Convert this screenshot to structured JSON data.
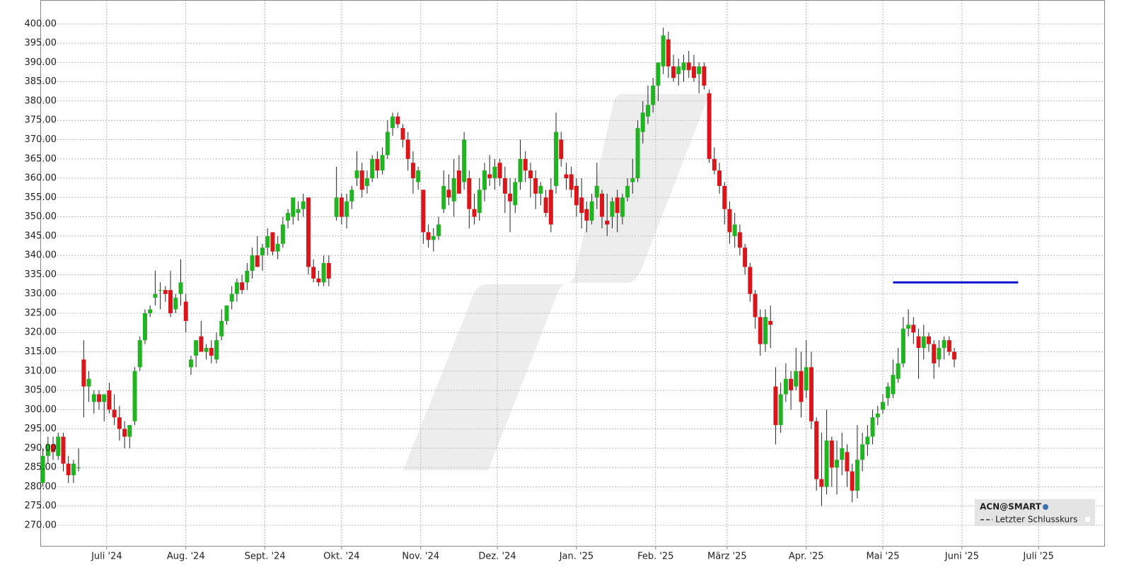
{
  "chart_data": {
    "type": "candlestick",
    "up_color": "#22b322",
    "down_color": "#d9161c",
    "grid": true,
    "xlim": [
      -26,
      391
    ],
    "ylim": [
      264.5,
      406.2
    ],
    "yticks": [
      {
        "value": 270,
        "label": "270.00"
      },
      {
        "value": 275,
        "label": "275.00"
      },
      {
        "value": 280,
        "label": "280.00"
      },
      {
        "value": 285,
        "label": "285.00"
      },
      {
        "value": 290,
        "label": "290.00"
      },
      {
        "value": 295,
        "label": "295.00"
      },
      {
        "value": 300,
        "label": "300.00"
      },
      {
        "value": 305,
        "label": "305.00"
      },
      {
        "value": 310,
        "label": "310.00"
      },
      {
        "value": 315,
        "label": "315.00"
      },
      {
        "value": 320,
        "label": "320.00"
      },
      {
        "value": 325,
        "label": "325.00"
      },
      {
        "value": 330,
        "label": "330.00"
      },
      {
        "value": 335,
        "label": "335.00"
      },
      {
        "value": 340,
        "label": "340.00"
      },
      {
        "value": 345,
        "label": "345.00"
      },
      {
        "value": 350,
        "label": "350.00"
      },
      {
        "value": 355,
        "label": "355.00"
      },
      {
        "value": 360,
        "label": "360.00"
      },
      {
        "value": 365,
        "label": "365.00"
      },
      {
        "value": 370,
        "label": "370.00"
      },
      {
        "value": 375,
        "label": "375.00"
      },
      {
        "value": 380,
        "label": "380.00"
      },
      {
        "value": 385,
        "label": "385.00"
      },
      {
        "value": 390,
        "label": "390.00"
      },
      {
        "value": 395,
        "label": "395.00"
      },
      {
        "value": 400,
        "label": "400.00"
      }
    ],
    "xticks": [
      {
        "value": 0,
        "label": "Juli '24"
      },
      {
        "value": 31,
        "label": "Aug. '24"
      },
      {
        "value": 62,
        "label": "Sept. '24"
      },
      {
        "value": 92,
        "label": "Okt. '24"
      },
      {
        "value": 123,
        "label": "Nov. '24"
      },
      {
        "value": 153,
        "label": "Dez. '24"
      },
      {
        "value": 184,
        "label": "Jan. '25"
      },
      {
        "value": 215,
        "label": "Feb. '25"
      },
      {
        "value": 243,
        "label": "März '25"
      },
      {
        "value": 274,
        "label": "Apr. '25"
      },
      {
        "value": 304,
        "label": "Mai '25"
      },
      {
        "value": 335,
        "label": "Juni '25"
      },
      {
        "value": 365,
        "label": "Juli '25"
      }
    ],
    "candles": [
      [
        -25,
        281,
        290,
        280,
        288
      ],
      [
        -23,
        288,
        293,
        286,
        291
      ],
      [
        -21,
        291,
        293,
        287,
        289
      ],
      [
        -19,
        288,
        294,
        287,
        293
      ],
      [
        -17,
        293,
        294,
        284,
        286
      ],
      [
        -15,
        286,
        288,
        281,
        283
      ],
      [
        -13,
        283,
        287,
        281,
        286
      ],
      [
        -11,
        285,
        290,
        284,
        285
      ],
      [
        -9,
        313,
        318,
        298,
        306
      ],
      [
        -7,
        306,
        310,
        302,
        308
      ],
      [
        -5,
        302,
        305,
        299,
        304
      ],
      [
        -3,
        304,
        305,
        300,
        302
      ],
      [
        -1,
        302,
        304,
        297,
        304
      ],
      [
        1,
        305,
        307,
        299,
        300
      ],
      [
        3,
        300,
        304,
        296,
        298
      ],
      [
        5,
        298,
        301,
        292,
        295
      ],
      [
        7,
        295,
        297,
        290,
        293
      ],
      [
        9,
        293,
        296,
        290,
        296
      ],
      [
        11,
        297,
        311,
        296,
        310
      ],
      [
        13,
        311,
        319,
        310,
        318
      ],
      [
        15,
        318,
        326,
        317,
        325
      ],
      [
        17,
        325,
        327,
        324,
        326
      ],
      [
        19,
        329,
        336,
        327,
        330
      ],
      [
        21,
        331,
        333,
        326,
        331
      ],
      [
        23,
        331,
        332,
        328,
        330
      ],
      [
        25,
        331,
        336,
        324,
        325
      ],
      [
        27,
        326,
        330,
        325,
        329
      ],
      [
        29,
        330,
        339,
        327,
        333
      ],
      [
        31,
        328,
        330,
        320,
        323
      ],
      [
        33,
        311,
        314,
        309,
        313
      ],
      [
        35,
        314,
        318,
        311,
        318
      ],
      [
        37,
        319,
        323,
        315,
        315
      ],
      [
        39,
        315,
        317,
        313,
        316
      ],
      [
        41,
        316,
        318,
        312,
        314
      ],
      [
        43,
        313,
        320,
        312,
        318
      ],
      [
        45,
        319,
        326,
        318,
        323
      ],
      [
        47,
        323,
        327,
        322,
        327
      ],
      [
        49,
        328,
        332,
        326,
        330
      ],
      [
        51,
        330,
        334,
        328,
        333
      ],
      [
        53,
        333,
        335,
        330,
        331
      ],
      [
        55,
        333,
        338,
        331,
        336
      ],
      [
        57,
        336,
        342,
        334,
        340
      ],
      [
        59,
        340,
        345,
        338,
        337
      ],
      [
        61,
        340,
        343,
        336,
        342
      ],
      [
        63,
        342,
        347,
        340,
        345
      ],
      [
        65,
        346,
        346,
        340,
        341
      ],
      [
        67,
        341,
        345,
        339,
        343
      ],
      [
        69,
        343,
        350,
        342,
        348
      ],
      [
        71,
        349,
        352,
        347,
        351
      ],
      [
        73,
        350,
        355,
        348,
        355
      ],
      [
        75,
        351,
        354,
        349,
        352
      ],
      [
        77,
        352,
        356,
        350,
        354
      ],
      [
        79,
        355,
        355,
        335,
        337
      ],
      [
        81,
        337,
        339,
        333,
        334
      ],
      [
        83,
        334,
        336,
        332,
        333
      ],
      [
        85,
        333,
        340,
        332,
        338
      ],
      [
        87,
        338,
        340,
        332,
        334
      ],
      [
        90,
        350,
        363,
        349,
        355
      ],
      [
        92,
        355,
        356,
        348,
        350
      ],
      [
        94,
        350,
        356,
        347,
        354
      ],
      [
        96,
        354,
        358,
        352,
        357
      ],
      [
        98,
        360,
        367,
        358,
        362
      ],
      [
        100,
        362,
        364,
        355,
        357
      ],
      [
        102,
        358,
        362,
        356,
        360
      ],
      [
        104,
        360,
        366,
        359,
        365
      ],
      [
        106,
        365,
        367,
        360,
        362
      ],
      [
        108,
        362,
        368,
        361,
        366
      ],
      [
        110,
        366,
        375,
        365,
        372
      ],
      [
        112,
        373,
        377,
        371,
        376
      ],
      [
        114,
        376,
        377,
        373,
        374
      ],
      [
        116,
        373,
        374,
        368,
        370
      ],
      [
        118,
        370,
        372,
        362,
        365
      ],
      [
        120,
        364,
        367,
        356,
        360
      ],
      [
        122,
        359,
        363,
        357,
        362
      ],
      [
        124,
        357,
        357,
        343,
        346
      ],
      [
        126,
        346,
        348,
        342,
        344
      ],
      [
        128,
        344,
        347,
        341,
        345
      ],
      [
        130,
        345,
        350,
        344,
        348
      ],
      [
        132,
        352,
        362,
        351,
        358
      ],
      [
        134,
        357,
        361,
        353,
        355
      ],
      [
        136,
        354,
        365,
        350,
        360
      ],
      [
        138,
        362,
        366,
        357,
        356
      ],
      [
        140,
        359,
        372,
        357,
        370
      ],
      [
        142,
        360,
        362,
        347,
        352
      ],
      [
        144,
        352,
        356,
        348,
        350
      ],
      [
        146,
        351,
        360,
        349,
        357
      ],
      [
        148,
        357,
        364,
        354,
        362
      ],
      [
        150,
        361,
        366,
        358,
        360
      ],
      [
        152,
        360,
        365,
        357,
        363
      ],
      [
        154,
        364,
        365,
        358,
        360
      ],
      [
        156,
        360,
        363,
        351,
        356
      ],
      [
        158,
        356,
        360,
        346,
        354
      ],
      [
        160,
        353,
        360,
        351,
        359
      ],
      [
        162,
        359,
        370,
        357,
        365
      ],
      [
        164,
        365,
        367,
        359,
        362
      ],
      [
        166,
        362,
        364,
        355,
        360
      ],
      [
        168,
        360,
        362,
        352,
        356
      ],
      [
        170,
        356,
        359,
        353,
        358
      ],
      [
        172,
        355,
        357,
        350,
        351
      ],
      [
        174,
        357,
        360,
        346,
        348
      ],
      [
        176,
        358,
        377,
        356,
        372
      ],
      [
        178,
        370,
        372,
        363,
        365
      ],
      [
        180,
        361,
        364,
        357,
        360
      ],
      [
        182,
        361,
        363,
        355,
        357
      ],
      [
        184,
        358,
        360,
        350,
        353
      ],
      [
        186,
        355,
        360,
        347,
        351
      ],
      [
        188,
        352,
        354,
        346,
        349
      ],
      [
        190,
        349,
        356,
        348,
        354
      ],
      [
        192,
        355,
        364,
        352,
        358
      ],
      [
        194,
        356,
        357,
        347,
        350
      ],
      [
        196,
        349,
        356,
        345,
        348
      ],
      [
        198,
        350,
        355,
        347,
        354
      ],
      [
        200,
        355,
        357,
        346,
        351
      ],
      [
        202,
        350,
        356,
        348,
        355
      ],
      [
        204,
        355,
        360,
        354,
        358
      ],
      [
        206,
        359,
        365,
        356,
        360
      ],
      [
        208,
        360,
        375,
        359,
        373
      ],
      [
        210,
        372,
        380,
        369,
        377
      ],
      [
        212,
        376,
        384,
        374,
        379
      ],
      [
        214,
        379,
        386,
        377,
        384
      ],
      [
        216,
        384,
        390,
        380,
        390
      ],
      [
        218,
        389,
        399,
        387,
        397
      ],
      [
        220,
        396,
        398,
        386,
        389
      ],
      [
        222,
        389,
        392,
        385,
        386
      ],
      [
        224,
        387,
        391,
        384,
        389
      ],
      [
        226,
        388,
        392,
        385,
        390
      ],
      [
        228,
        390,
        393,
        386,
        388
      ],
      [
        230,
        389,
        392,
        385,
        386
      ],
      [
        232,
        387,
        390,
        382,
        389
      ],
      [
        234,
        389,
        390,
        383,
        384
      ],
      [
        236,
        382,
        383,
        364,
        365
      ],
      [
        238,
        365,
        368,
        361,
        362
      ],
      [
        240,
        362,
        364,
        356,
        358
      ],
      [
        242,
        358,
        359,
        348,
        352
      ],
      [
        244,
        352,
        354,
        343,
        346
      ],
      [
        246,
        345,
        351,
        342,
        348
      ],
      [
        248,
        346,
        348,
        340,
        342
      ],
      [
        250,
        342,
        343,
        335,
        337
      ],
      [
        252,
        337,
        338,
        328,
        330
      ],
      [
        254,
        330,
        331,
        321,
        324
      ],
      [
        256,
        324,
        326,
        314,
        317
      ],
      [
        258,
        317,
        326,
        315,
        324
      ],
      [
        260,
        323,
        327,
        316,
        322
      ],
      [
        262,
        306,
        311,
        291,
        296
      ],
      [
        264,
        296,
        307,
        294,
        304
      ],
      [
        266,
        304,
        312,
        302,
        308
      ],
      [
        268,
        308,
        310,
        300,
        305
      ],
      [
        270,
        306,
        316,
        305,
        310
      ],
      [
        272,
        310,
        315,
        298,
        302
      ],
      [
        274,
        305,
        318,
        303,
        311
      ],
      [
        276,
        311,
        315,
        295,
        297
      ],
      [
        278,
        297,
        298,
        279,
        282
      ],
      [
        280,
        282,
        294,
        275,
        280
      ],
      [
        282,
        280,
        300,
        278,
        292
      ],
      [
        284,
        292,
        293,
        280,
        285
      ],
      [
        286,
        285,
        292,
        278,
        287
      ],
      [
        288,
        287,
        294,
        283,
        290
      ],
      [
        290,
        289,
        291,
        280,
        284
      ],
      [
        292,
        284,
        286,
        276,
        279
      ],
      [
        294,
        279,
        296,
        277,
        287
      ],
      [
        296,
        287,
        294,
        284,
        291
      ],
      [
        298,
        291,
        296,
        288,
        293
      ],
      [
        300,
        293,
        300,
        291,
        298
      ],
      [
        302,
        298,
        301,
        296,
        299
      ],
      [
        304,
        300,
        304,
        299,
        302
      ],
      [
        306,
        303,
        307,
        301,
        306
      ],
      [
        308,
        304,
        313,
        303,
        309
      ],
      [
        310,
        308,
        316,
        307,
        312
      ],
      [
        312,
        312,
        324,
        311,
        321
      ],
      [
        314,
        321,
        326,
        319,
        322
      ],
      [
        316,
        322,
        324,
        317,
        320
      ],
      [
        318,
        319,
        321,
        308,
        316
      ],
      [
        320,
        316,
        322,
        313,
        319
      ],
      [
        322,
        319,
        320,
        315,
        317
      ],
      [
        324,
        317,
        318,
        308,
        312
      ],
      [
        326,
        313,
        318,
        311,
        316
      ],
      [
        328,
        316,
        319,
        313,
        318
      ],
      [
        330,
        318,
        319,
        314,
        315
      ],
      [
        332,
        315,
        316,
        311,
        313
      ]
    ],
    "series": [
      {
        "color": "#0a14d0",
        "x": [
          308,
          357
        ],
        "values": [
          333,
          333
        ]
      }
    ],
    "legend": {
      "title": "ACN@SMART",
      "entries": [
        "Letzter Schlusskurs"
      ]
    }
  }
}
